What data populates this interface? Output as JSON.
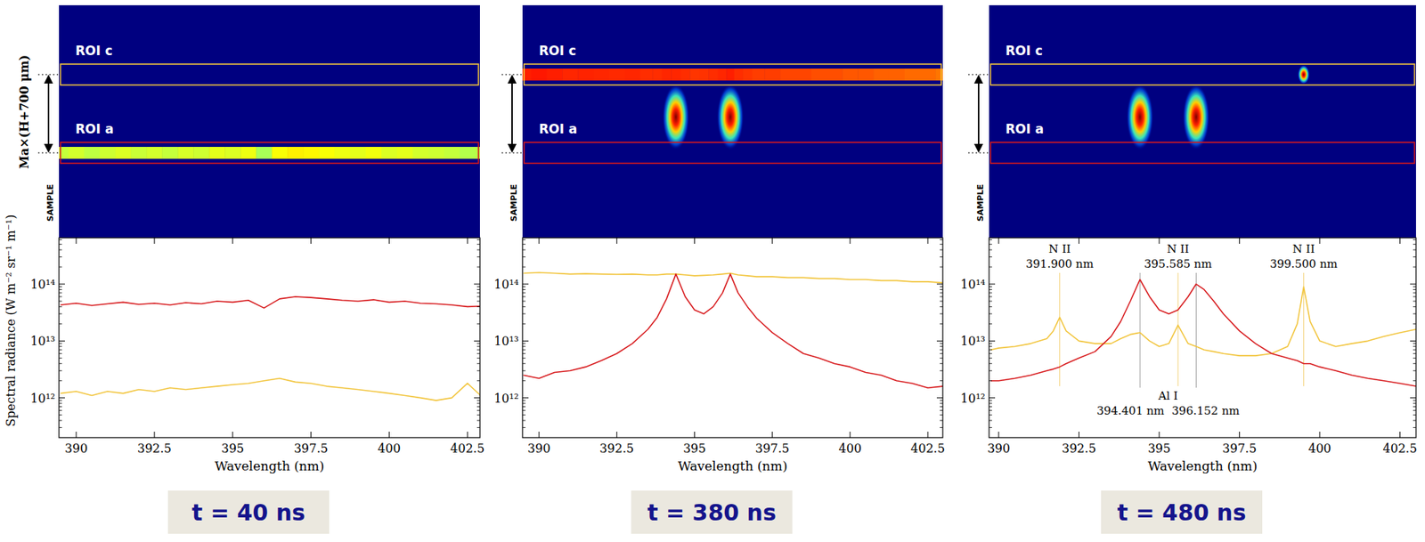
{
  "chart_data": [
    {
      "type": "line",
      "title": "t = 40 ns",
      "xlabel": "Wavelength (nm)",
      "ylabel": "Spectral radiance (W m⁻² sr⁻¹ m⁻¹)",
      "log": "y",
      "xlim": [
        389.45,
        402.9
      ],
      "ylim": [
        200000000000.0,
        650000000000000.0
      ],
      "xticks": [
        390,
        392.5,
        395,
        397.5,
        400,
        402.5
      ],
      "yticks": [
        {
          "value": 1000000000000.0,
          "label": "10¹²"
        },
        {
          "value": 10000000000000.0,
          "label": "10¹³"
        },
        {
          "value": 100000000000000.0,
          "label": "10¹⁴"
        }
      ],
      "image": {
        "sample_label": "SAMPLE",
        "scale_label": "Ma×(H+700 μm)"
      },
      "x": [
        389.5,
        390,
        390.5,
        391,
        391.5,
        392,
        392.5,
        393,
        393.5,
        394,
        394.5,
        395,
        395.5,
        396,
        396.5,
        397,
        397.5,
        398,
        398.5,
        399,
        399.5,
        400,
        400.5,
        401,
        401.5,
        402,
        402.5,
        403
      ],
      "series": [
        {
          "name": "ROI c",
          "color": "#f2c53d",
          "values": [
            1200000000000.0,
            1300000000000.0,
            1100000000000.0,
            1300000000000.0,
            1200000000000.0,
            1400000000000.0,
            1300000000000.0,
            1500000000000.0,
            1400000000000.0,
            1500000000000.0,
            1600000000000.0,
            1700000000000.0,
            1800000000000.0,
            2000000000000.0,
            2200000000000.0,
            1900000000000.0,
            1800000000000.0,
            1600000000000.0,
            1500000000000.0,
            1400000000000.0,
            1300000000000.0,
            1200000000000.0,
            1100000000000.0,
            1000000000000.0,
            900000000000.0,
            1000000000000.0,
            1800000000000.0,
            1000000000000.0
          ]
        },
        {
          "name": "ROI a",
          "color": "#d7191c",
          "values": [
            43000000000000.0,
            46000000000000.0,
            42000000000000.0,
            45000000000000.0,
            48000000000000.0,
            44000000000000.0,
            46000000000000.0,
            43000000000000.0,
            47000000000000.0,
            45000000000000.0,
            50000000000000.0,
            48000000000000.0,
            52000000000000.0,
            38000000000000.0,
            55000000000000.0,
            60000000000000.0,
            58000000000000.0,
            55000000000000.0,
            52000000000000.0,
            50000000000000.0,
            53000000000000.0,
            48000000000000.0,
            50000000000000.0,
            46000000000000.0,
            45000000000000.0,
            43000000000000.0,
            40000000000000.0,
            41000000000000.0
          ]
        }
      ]
    },
    {
      "type": "line",
      "title": "t = 380 ns",
      "xlabel": "Wavelength (nm)",
      "log": "y",
      "xlim": [
        389.47,
        402.98
      ],
      "ylim": [
        200000000000.0,
        650000000000000.0
      ],
      "xticks": [
        390,
        392.5,
        395,
        397.5,
        400,
        402.5
      ],
      "yticks": [
        {
          "value": 1000000000000.0,
          "label": "10¹²"
        },
        {
          "value": 10000000000000.0,
          "label": "10¹³"
        },
        {
          "value": 100000000000000.0,
          "label": "10¹⁴"
        }
      ],
      "image": {
        "sample_label": "SAMPLE"
      },
      "x": [
        389.5,
        390,
        390.5,
        391,
        391.5,
        392,
        392.5,
        393,
        393.5,
        393.8,
        394.1,
        394.4,
        394.7,
        395.0,
        395.3,
        395.6,
        395.9,
        396.15,
        396.4,
        396.7,
        397,
        397.5,
        398,
        398.5,
        399,
        399.5,
        400,
        400.5,
        401,
        401.5,
        402,
        402.5,
        403
      ],
      "series": [
        {
          "name": "ROI c",
          "color": "#f2c53d",
          "values": [
            155000000000000.0,
            160000000000000.0,
            155000000000000.0,
            150000000000000.0,
            152000000000000.0,
            150000000000000.0,
            148000000000000.0,
            150000000000000.0,
            145000000000000.0,
            145000000000000.0,
            150000000000000.0,
            150000000000000.0,
            145000000000000.0,
            140000000000000.0,
            142000000000000.0,
            145000000000000.0,
            150000000000000.0,
            155000000000000.0,
            145000000000000.0,
            140000000000000.0,
            135000000000000.0,
            135000000000000.0,
            130000000000000.0,
            130000000000000.0,
            125000000000000.0,
            125000000000000.0,
            120000000000000.0,
            120000000000000.0,
            115000000000000.0,
            115000000000000.0,
            110000000000000.0,
            110000000000000.0,
            105000000000000.0
          ]
        },
        {
          "name": "ROI a",
          "color": "#d7191c",
          "values": [
            2500000000000.0,
            2200000000000.0,
            2800000000000.0,
            3000000000000.0,
            3500000000000.0,
            4500000000000.0,
            6000000000000.0,
            9000000000000.0,
            16000000000000.0,
            26000000000000.0,
            55000000000000.0,
            150000000000000.0,
            60000000000000.0,
            35000000000000.0,
            30000000000000.0,
            40000000000000.0,
            70000000000000.0,
            150000000000000.0,
            70000000000000.0,
            40000000000000.0,
            25000000000000.0,
            14000000000000.0,
            9000000000000.0,
            6000000000000.0,
            5000000000000.0,
            4000000000000.0,
            3500000000000.0,
            2800000000000.0,
            2500000000000.0,
            2000000000000.0,
            1800000000000.0,
            1500000000000.0,
            1600000000000.0
          ]
        }
      ]
    },
    {
      "type": "line",
      "title": "t = 480 ns",
      "xlabel": "Wavelength (nm)",
      "log": "y",
      "xlim": [
        389.7,
        403.0
      ],
      "ylim": [
        200000000000.0,
        650000000000000.0
      ],
      "xticks": [
        390,
        392.5,
        395,
        397.5,
        400,
        402.5
      ],
      "yticks": [
        {
          "value": 1000000000000.0,
          "label": "10¹²"
        },
        {
          "value": 10000000000000.0,
          "label": "10¹³"
        },
        {
          "value": 100000000000000.0,
          "label": "10¹⁴"
        }
      ],
      "image": {
        "sample_label": "SAMPLE"
      },
      "annotations": {
        "top": [
          {
            "text": "N II",
            "x": 391.9,
            "label": "391.900 nm"
          },
          {
            "text": "N II",
            "x": 395.585,
            "label": "395.585 nm"
          },
          {
            "text": "N II",
            "x": 399.5,
            "label": "399.500 nm"
          }
        ],
        "bottom": {
          "text": "Al I",
          "lines": [
            {
              "x": 394.401,
              "label": "394.401 nm"
            },
            {
              "x": 396.152,
              "label": "396.152 nm"
            }
          ]
        }
      },
      "x": [
        389.75,
        390,
        390.5,
        391,
        391.5,
        391.7,
        391.9,
        392.1,
        392.5,
        393,
        393.5,
        393.8,
        394.1,
        394.4,
        394.7,
        395.0,
        395.3,
        395.585,
        395.9,
        396.15,
        396.4,
        396.7,
        397,
        397.5,
        398,
        398.5,
        399,
        399.3,
        399.5,
        399.7,
        400,
        400.5,
        401,
        401.5,
        402,
        402.5,
        403
      ],
      "series": [
        {
          "name": "ROI c",
          "color": "#f2c53d",
          "values": [
            7000000000000.0,
            7500000000000.0,
            8000000000000.0,
            9000000000000.0,
            11000000000000.0,
            15000000000000.0,
            26000000000000.0,
            15000000000000.0,
            10000000000000.0,
            9000000000000.0,
            9000000000000.0,
            11000000000000.0,
            13000000000000.0,
            14000000000000.0,
            10000000000000.0,
            8000000000000.0,
            9000000000000.0,
            19000000000000.0,
            9000000000000.0,
            8000000000000.0,
            7000000000000.0,
            6500000000000.0,
            6000000000000.0,
            5500000000000.0,
            5500000000000.0,
            6000000000000.0,
            8000000000000.0,
            20000000000000.0,
            90000000000000.0,
            22000000000000.0,
            10000000000000.0,
            8000000000000.0,
            9000000000000.0,
            10000000000000.0,
            12000000000000.0,
            14000000000000.0,
            16000000000000.0
          ]
        },
        {
          "name": "ROI a",
          "color": "#d7191c",
          "values": [
            2000000000000.0,
            2000000000000.0,
            2200000000000.0,
            2500000000000.0,
            3000000000000.0,
            3200000000000.0,
            3500000000000.0,
            4000000000000.0,
            5000000000000.0,
            6500000000000.0,
            12000000000000.0,
            22000000000000.0,
            50000000000000.0,
            120000000000000.0,
            60000000000000.0,
            35000000000000.0,
            30000000000000.0,
            35000000000000.0,
            60000000000000.0,
            100000000000000.0,
            80000000000000.0,
            50000000000000.0,
            30000000000000.0,
            15000000000000.0,
            9000000000000.0,
            6000000000000.0,
            5000000000000.0,
            4500000000000.0,
            4000000000000.0,
            4000000000000.0,
            3500000000000.0,
            3000000000000.0,
            2500000000000.0,
            2200000000000.0,
            2000000000000.0,
            1800000000000.0,
            1600000000000.0
          ]
        }
      ]
    }
  ]
}
